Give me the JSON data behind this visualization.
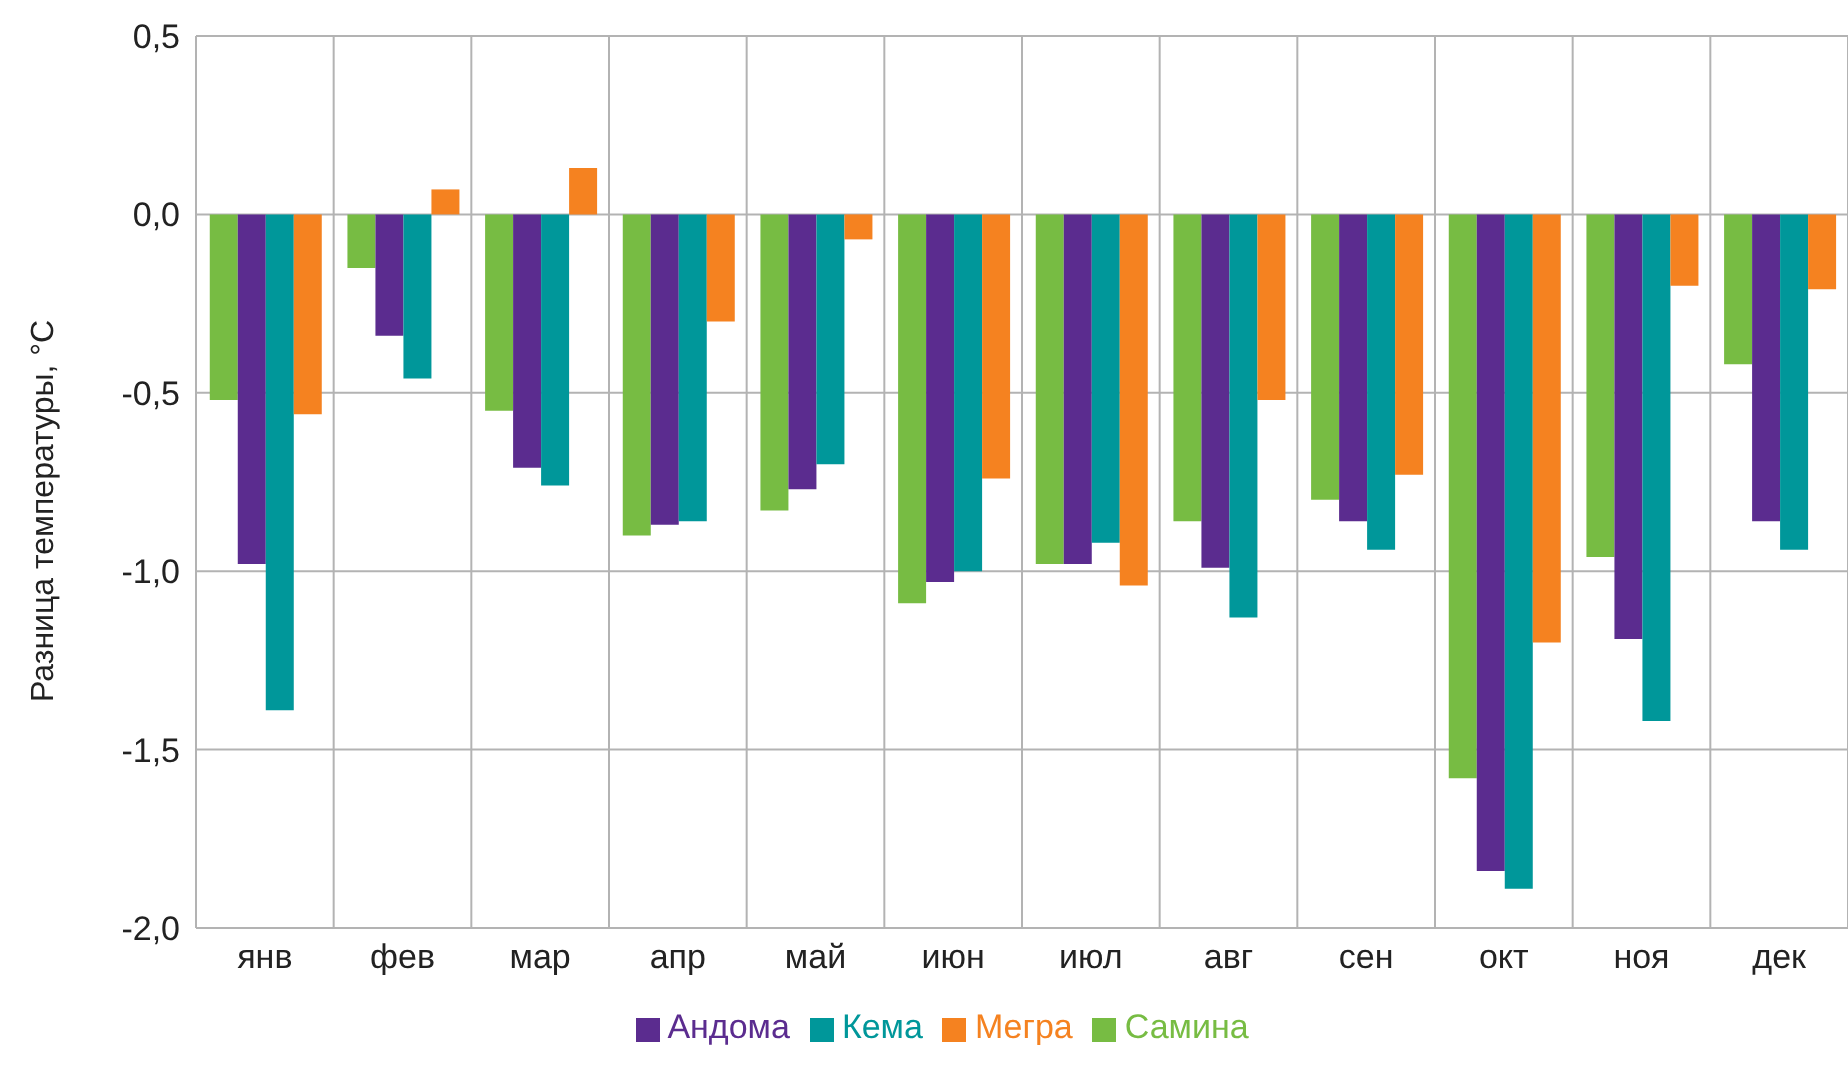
{
  "chart_data": {
    "type": "bar",
    "ylabel": "Разница температуры, °C",
    "categories": [
      "янв",
      "фев",
      "мар",
      "апр",
      "май",
      "июн",
      "июл",
      "авг",
      "сен",
      "окт",
      "ноя",
      "дек"
    ],
    "series": [
      {
        "name": "Самина",
        "color": "#77bc43",
        "values": [
          -0.52,
          -0.15,
          -0.55,
          -0.9,
          -0.83,
          -1.09,
          -0.98,
          -0.86,
          -0.8,
          -1.58,
          -0.96,
          -0.42
        ]
      },
      {
        "name": "Андома",
        "color": "#5b2c8f",
        "values": [
          -0.98,
          -0.34,
          -0.71,
          -0.87,
          -0.77,
          -1.03,
          -0.98,
          -0.99,
          -0.86,
          -1.84,
          -1.19,
          -0.86
        ]
      },
      {
        "name": "Кема",
        "color": "#00979a",
        "values": [
          -1.39,
          -0.46,
          -0.76,
          -0.86,
          -0.7,
          -1.0,
          -0.92,
          -1.13,
          -0.94,
          -1.89,
          -1.42,
          -0.94
        ]
      },
      {
        "name": "Мегра",
        "color": "#f58220",
        "values": [
          -0.56,
          0.07,
          0.13,
          -0.3,
          -0.07,
          -0.74,
          -1.04,
          -0.52,
          -0.73,
          -1.2,
          -0.2,
          -0.21
        ]
      }
    ],
    "ylim": [
      -2,
      0.5
    ],
    "yticks": [
      {
        "value": -2,
        "label": "-2,0"
      },
      {
        "value": -1.5,
        "label": "-1,5"
      },
      {
        "value": -1,
        "label": "-1,0"
      },
      {
        "value": -0.5,
        "label": "-0,5"
      },
      {
        "value": 0,
        "label": "0,0"
      },
      {
        "value": 0.5,
        "label": "0,5"
      }
    ],
    "grid": true,
    "legend": "bottom"
  }
}
